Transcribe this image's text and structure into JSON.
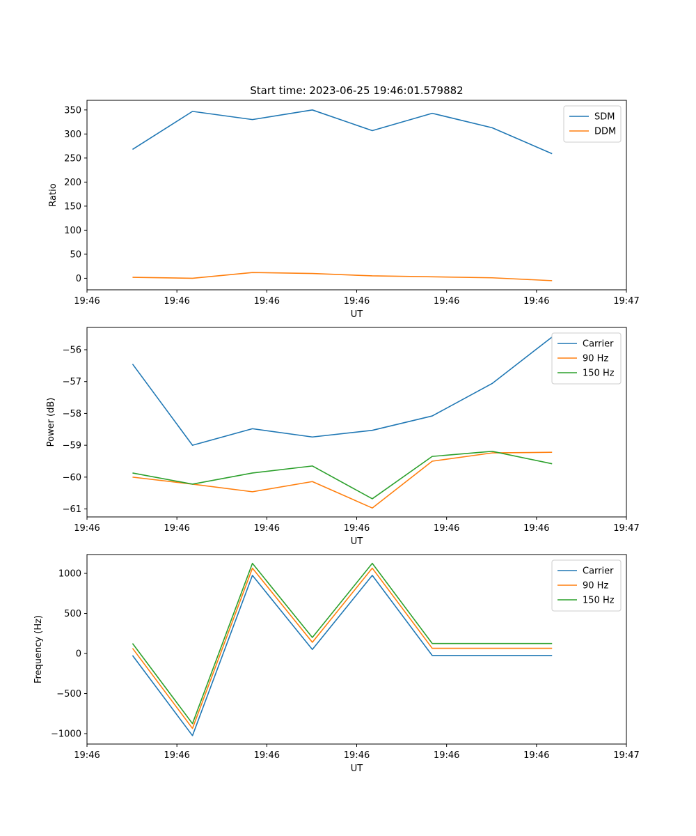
{
  "figure": {
    "title": "Start time: 2023-06-25 19:46:01.579882"
  },
  "chart_data": [
    {
      "type": "line",
      "title": "Start time: 2023-06-25 19:46:01.579882",
      "xlabel": "UT",
      "ylabel": "Ratio",
      "x": [
        1,
        2,
        3,
        4,
        5,
        6,
        7,
        8
      ],
      "xlim": [
        0.24,
        9.24
      ],
      "x_ticks": [
        {
          "value": 0.24,
          "label": "19:46"
        },
        {
          "value": 1.74,
          "label": "19:46"
        },
        {
          "value": 3.24,
          "label": "19:46"
        },
        {
          "value": 4.74,
          "label": "19:46"
        },
        {
          "value": 6.24,
          "label": "19:46"
        },
        {
          "value": 7.74,
          "label": "19:46"
        },
        {
          "value": 9.24,
          "label": "19:47"
        }
      ],
      "ylim": [
        -24,
        370
      ],
      "y_ticks": [
        0,
        50,
        100,
        150,
        200,
        250,
        300,
        350
      ],
      "y_tick_labels": [
        "0",
        "50",
        "100",
        "150",
        "200",
        "250",
        "300",
        "350"
      ],
      "grid": false,
      "legend": "upper right",
      "series": [
        {
          "name": "SDM",
          "color": "#1f77b4",
          "values": [
            268,
            347,
            330,
            350,
            307,
            343,
            313,
            259
          ]
        },
        {
          "name": "DDM",
          "color": "#ff7f0e",
          "values": [
            2,
            0,
            12,
            10,
            5,
            3,
            1,
            -5
          ]
        }
      ]
    },
    {
      "type": "line",
      "xlabel": "UT",
      "ylabel": "Power (dB)",
      "x": [
        1,
        2,
        3,
        4,
        5,
        6,
        7,
        8
      ],
      "xlim": [
        0.24,
        9.24
      ],
      "x_ticks": [
        {
          "value": 0.24,
          "label": "19:46"
        },
        {
          "value": 1.74,
          "label": "19:46"
        },
        {
          "value": 3.24,
          "label": "19:46"
        },
        {
          "value": 4.74,
          "label": "19:46"
        },
        {
          "value": 6.24,
          "label": "19:46"
        },
        {
          "value": 7.74,
          "label": "19:46"
        },
        {
          "value": 9.24,
          "label": "19:47"
        }
      ],
      "ylim": [
        -61.25,
        -55.3
      ],
      "y_ticks": [
        -61,
        -60,
        -59,
        -58,
        -57,
        -56
      ],
      "y_tick_labels": [
        "−61",
        "−60",
        "−59",
        "−58",
        "−57",
        "−56"
      ],
      "grid": false,
      "legend": "upper right",
      "series": [
        {
          "name": "Carrier",
          "color": "#1f77b4",
          "values": [
            -56.45,
            -59.0,
            -58.48,
            -58.74,
            -58.53,
            -58.08,
            -57.06,
            -55.6
          ]
        },
        {
          "name": "90 Hz",
          "color": "#ff7f0e",
          "values": [
            -60.0,
            -60.22,
            -60.46,
            -60.14,
            -60.97,
            -59.5,
            -59.24,
            -59.22
          ]
        },
        {
          "name": "150 Hz",
          "color": "#2ca02c",
          "values": [
            -59.87,
            -60.22,
            -59.87,
            -59.65,
            -60.68,
            -59.35,
            -59.19,
            -59.58
          ]
        }
      ]
    },
    {
      "type": "line",
      "xlabel": "UT",
      "ylabel": "Frequency (Hz)",
      "x": [
        1,
        2,
        3,
        4,
        5,
        6,
        7,
        8
      ],
      "xlim": [
        0.24,
        9.24
      ],
      "x_ticks": [
        {
          "value": 0.24,
          "label": "19:46"
        },
        {
          "value": 1.74,
          "label": "19:46"
        },
        {
          "value": 3.24,
          "label": "19:46"
        },
        {
          "value": 4.74,
          "label": "19:46"
        },
        {
          "value": 6.24,
          "label": "19:46"
        },
        {
          "value": 7.74,
          "label": "19:46"
        },
        {
          "value": 9.24,
          "label": "19:47"
        }
      ],
      "ylim": [
        -1130,
        1235
      ],
      "y_ticks": [
        -1000,
        -500,
        0,
        500,
        1000
      ],
      "y_tick_labels": [
        "−1000",
        "−500",
        "0",
        "500",
        "1000"
      ],
      "grid": false,
      "legend": "upper right",
      "series": [
        {
          "name": "Carrier",
          "color": "#1f77b4",
          "values": [
            -25,
            -1025,
            975,
            50,
            975,
            -25,
            -25,
            -25
          ]
        },
        {
          "name": "90 Hz",
          "color": "#ff7f0e",
          "values": [
            65,
            -935,
            1065,
            140,
            1065,
            65,
            65,
            65
          ]
        },
        {
          "name": "150 Hz",
          "color": "#2ca02c",
          "values": [
            125,
            -875,
            1125,
            200,
            1125,
            125,
            125,
            125
          ]
        }
      ]
    }
  ]
}
